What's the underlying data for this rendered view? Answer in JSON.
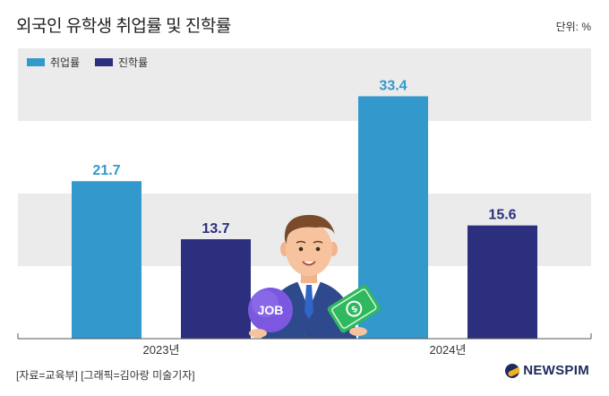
{
  "header": {
    "title": "외국인 유학생 취업률 및 진학률",
    "unit": "단위: %"
  },
  "footer": {
    "source": "[자료=교육부] [그래픽=김아랑 미술기자]",
    "logo": "NEWSPIM"
  },
  "illustration": {
    "badge_text": "JOB"
  },
  "colors": {
    "series1": "#3399cc",
    "series2": "#2b2f7e",
    "band": "#ebebeb",
    "axis": "#555555"
  },
  "chart_data": {
    "type": "bar",
    "title": "외국인 유학생 취업률 및 진학률",
    "unit": "%",
    "categories": [
      "2023년",
      "2024년"
    ],
    "series": [
      {
        "name": "취업률",
        "values": [
          21.7,
          33.4
        ]
      },
      {
        "name": "진학률",
        "values": [
          13.7,
          15.6
        ]
      }
    ],
    "ylim": [
      0,
      40
    ],
    "grid": "alternating bands",
    "legend": "top-left"
  }
}
